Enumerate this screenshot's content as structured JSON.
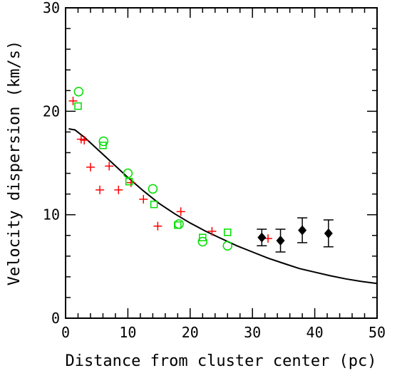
{
  "chart_data": {
    "type": "scatter",
    "xlabel": "Distance from cluster center (pc)",
    "ylabel": "Velocity dispersion (km/s)",
    "xlim": [
      0,
      50
    ],
    "ylim": [
      0,
      30
    ],
    "xticks": [
      "0",
      "10",
      "20",
      "30",
      "40",
      "50"
    ],
    "yticks": [
      "0",
      "10",
      "20",
      "30"
    ],
    "grid": false,
    "series": [
      {
        "marker": "plus",
        "color": "#ff0000",
        "points": [
          [
            1.2,
            21.0
          ],
          [
            2.5,
            17.3
          ],
          [
            3.0,
            17.2
          ],
          [
            4.0,
            14.6
          ],
          [
            5.5,
            12.4
          ],
          [
            7.0,
            14.7
          ],
          [
            8.5,
            12.4
          ],
          [
            10.5,
            13.1
          ],
          [
            12.5,
            11.5
          ],
          [
            14.8,
            8.9
          ],
          [
            18.5,
            10.3
          ],
          [
            23.5,
            8.4
          ],
          [
            32.5,
            7.7
          ]
        ]
      },
      {
        "marker": "open-square",
        "color": "#00dd00",
        "points": [
          [
            2.0,
            20.5
          ],
          [
            6.0,
            16.7
          ],
          [
            10.2,
            13.2
          ],
          [
            14.2,
            11.0
          ],
          [
            18.0,
            9.0
          ],
          [
            22.0,
            7.8
          ],
          [
            26.0,
            8.3
          ]
        ]
      },
      {
        "marker": "open-circle",
        "color": "#00dd00",
        "points": [
          [
            2.1,
            21.9
          ],
          [
            6.1,
            17.1
          ],
          [
            10.0,
            14.0
          ],
          [
            14.0,
            12.5
          ],
          [
            18.2,
            9.1
          ],
          [
            22.0,
            7.4
          ],
          [
            26.0,
            7.0
          ]
        ]
      },
      {
        "marker": "filled-diamond",
        "color": "#000000",
        "error_bars": true,
        "points": [
          [
            31.5,
            7.8,
            0.8
          ],
          [
            34.5,
            7.5,
            1.1
          ],
          [
            38.0,
            8.5,
            1.2
          ],
          [
            42.2,
            8.2,
            1.3
          ]
        ]
      },
      {
        "marker": "line",
        "color": "#000000",
        "points": [
          [
            0.5,
            18.3
          ],
          [
            1.5,
            18.2
          ],
          [
            3,
            17.5
          ],
          [
            5,
            16.4
          ],
          [
            7.5,
            15.0
          ],
          [
            10,
            13.6
          ],
          [
            12.5,
            12.3
          ],
          [
            15,
            11.1
          ],
          [
            17.5,
            10.1
          ],
          [
            20,
            9.2
          ],
          [
            22.5,
            8.4
          ],
          [
            25,
            7.7
          ],
          [
            27.5,
            7.0
          ],
          [
            30,
            6.4
          ],
          [
            32.5,
            5.8
          ],
          [
            35,
            5.3
          ],
          [
            37.5,
            4.8
          ],
          [
            40,
            4.45
          ],
          [
            42.5,
            4.1
          ],
          [
            45,
            3.8
          ],
          [
            47.5,
            3.55
          ],
          [
            50,
            3.35
          ]
        ]
      }
    ]
  }
}
